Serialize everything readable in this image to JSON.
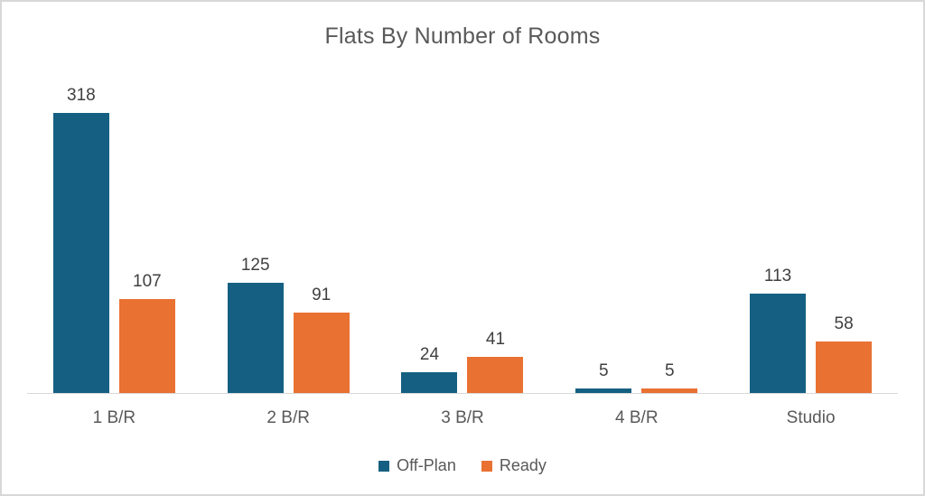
{
  "chart_data": {
    "type": "bar",
    "title": "Flats By Number of Rooms",
    "categories": [
      "1 B/R",
      "2 B/R",
      "3 B/R",
      "4 B/R",
      "Studio"
    ],
    "series": [
      {
        "name": "Off-Plan",
        "color": "#156082",
        "values": [
          318,
          125,
          24,
          5,
          113
        ]
      },
      {
        "name": "Ready",
        "color": "#E97132",
        "values": [
          107,
          91,
          41,
          5,
          58
        ]
      }
    ],
    "xlabel": "",
    "ylabel": "",
    "ylim": [
      0,
      350
    ],
    "grid": false,
    "y_axis_visible": false,
    "data_labels": true,
    "legend_position": "bottom"
  },
  "colors": {
    "axis_line": "#d9d9d9",
    "frame_border": "#d8d8d8",
    "title_text": "#595959",
    "category_text": "#595959",
    "data_label_text": "#404040",
    "legend_text": "#595959",
    "background": "#ffffff"
  }
}
